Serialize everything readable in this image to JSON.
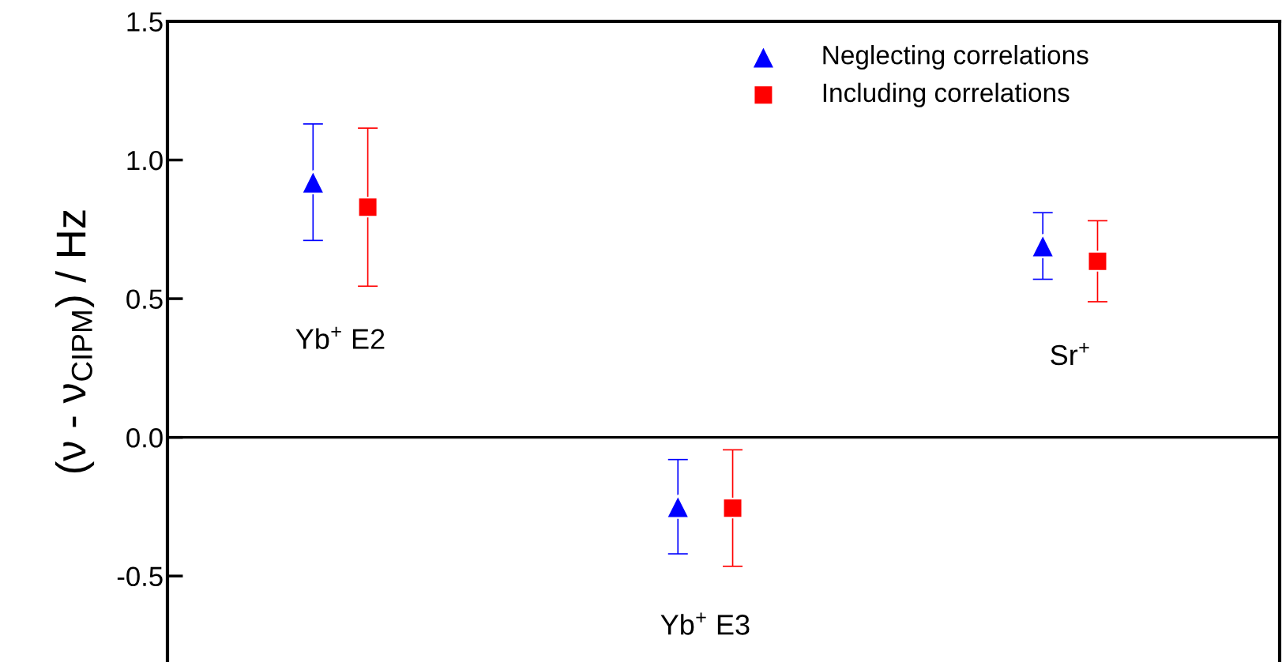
{
  "chart_data": {
    "type": "scatter",
    "ylabel": "(ν - ν$_{CIPM}$) / Hz",
    "categories": [
      null,
      null,
      null
    ],
    "series": [
      {
        "name": "Neglecting correlations",
        "color": "#0000ff",
        "marker": "triangle",
        "values": [
          0.92,
          -0.25,
          0.69
        ],
        "errors": [
          0.21,
          0.17,
          0.12
        ]
      },
      {
        "name": "Including correlations",
        "color": "#ff0000",
        "marker": "square",
        "values": [
          0.83,
          -0.255,
          0.635
        ],
        "errors": [
          0.285,
          0.21,
          0.146
        ]
      }
    ],
    "annotations": [
      "Yb$^{+}$ E2",
      "Yb$^{+}$ E3",
      "Sr$^{+}$"
    ],
    "ref_lines": [
      {
        "axis": "y",
        "value": 0,
        "color": "#000000"
      }
    ],
    "ylim": [
      -0.81,
      1.5
    ],
    "yticks": [
      {
        "value": 1.5,
        "label": "1.5"
      },
      {
        "value": 1,
        "label": "1.0"
      },
      {
        "value": 0.5,
        "label": "0.5"
      },
      {
        "value": 0,
        "label": "0.0"
      },
      {
        "value": -0.5,
        "label": "-0.5"
      }
    ],
    "tick_labels": "y",
    "grid": false,
    "legend": "top right"
  }
}
